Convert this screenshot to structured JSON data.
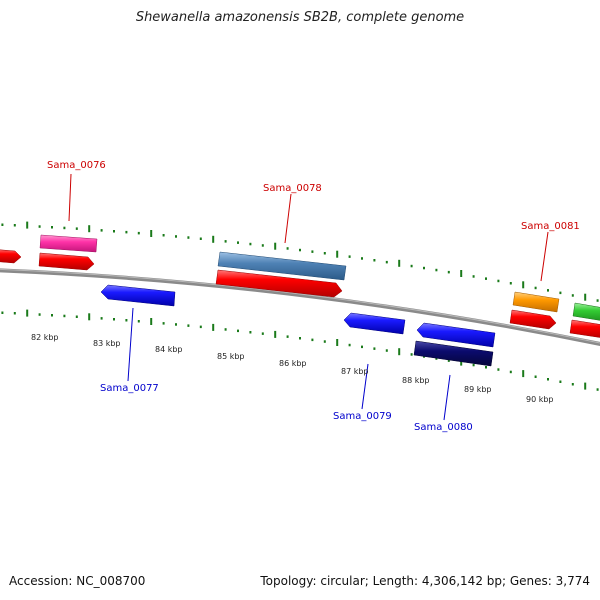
{
  "title": "Shewanella amazonensis SB2B, complete genome",
  "footer": {
    "accession": "Accession: NC_008700",
    "topology": "Topology: circular; Length: 4,306,142 bp; Genes: 3,774"
  },
  "scale_labels": [
    "82 kbp",
    "83 kbp",
    "84 kbp",
    "85 kbp",
    "86 kbp",
    "87 kbp",
    "88 kbp",
    "89 kbp",
    "90 kbp"
  ],
  "gene_labels": [
    {
      "name": "Sama_0076",
      "color": "#cc0000"
    },
    {
      "name": "Sama_0077",
      "color": "#0000cc"
    },
    {
      "name": "Sama_0078",
      "color": "#cc0000"
    },
    {
      "name": "Sama_0079",
      "color": "#0000cc"
    },
    {
      "name": "Sama_0080",
      "color": "#0000cc"
    },
    {
      "name": "Sama_0081",
      "color": "#cc0000"
    }
  ],
  "colors": {
    "backbone": "#8a8a8a",
    "tick": "#1a7a1a",
    "forward_cds": "#ff0000",
    "reverse_cds": "#1a1aff",
    "rrna_magenta": "#ff33a8",
    "steelblue": "#4f82b5",
    "orange": "#ff9900",
    "green": "#33cc33",
    "navy": "#0b0b6e"
  }
}
